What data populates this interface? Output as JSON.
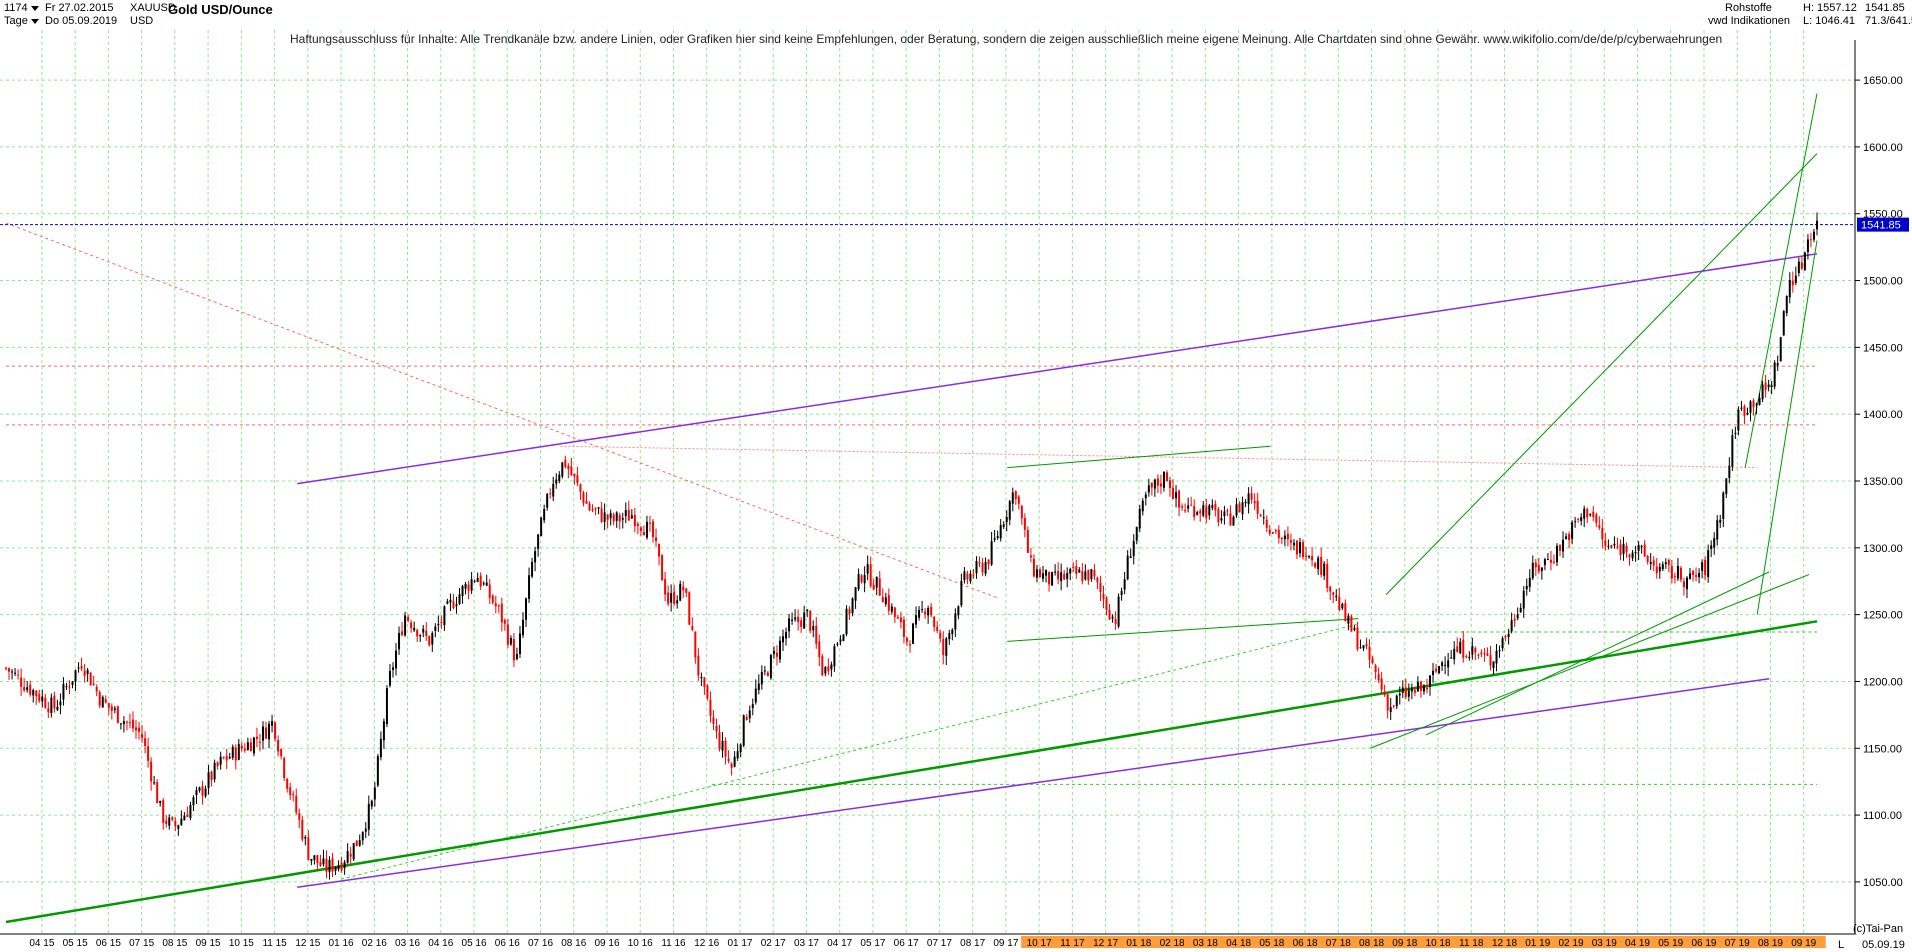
{
  "header": {
    "bar_count": "1174",
    "bar_count_dropdown": "chevron-down",
    "start_date": "Fr 27.02.2015",
    "period": "Tage",
    "end_date": "Do 05.09.2019",
    "symbol": "XAUUSD",
    "currency": "USD",
    "title": "Gold USD/Ounce",
    "category": "Rohstoffe",
    "source": "vwd Indikationen",
    "high_label": "H: 1557.12",
    "low_label": "L: 1046.41",
    "last_price": "1541.85",
    "ratio": "71.3/641.5"
  },
  "disclaimer": "Haftungsausschluss für Inhalte: Alle Trendkanäle bzw. andere Linien, oder Grafiken hier sind keine Empfehlungen, oder Beratung, sondern die zeigen ausschließlich meine eigene Meinung. Alle Chartdaten sind ohne Gewähr.  www.wikifolio.com/de/de/p/cyberwaehrungen",
  "footer": {
    "copyright": "(c)Tai-Pan",
    "scale_letter": "L",
    "last_date": "05.09.19"
  },
  "colors": {
    "up": "#000000",
    "down": "#ff0000",
    "grid": "#8ee88e",
    "purple": "#8a2be2",
    "green": "#009900",
    "last_price_bg": "#0000cc",
    "future_axis_bg": "#ff9d3b"
  },
  "chart_data": {
    "type": "candlestick",
    "title": "Gold USD/Ounce",
    "y_range": [
      1020,
      1680
    ],
    "y_ticks": [
      1050,
      1100,
      1150,
      1200,
      1250,
      1300,
      1350,
      1400,
      1450,
      1500,
      1550,
      1600,
      1650
    ],
    "y_tick_labels": [
      "1050.00",
      "1100.00",
      "1150.00",
      "1200.00",
      "1250.00",
      "1300.00",
      "1350.00",
      "1400.00",
      "1450.00",
      "1500.00",
      "1550.00",
      "1600.00",
      "1650.00"
    ],
    "last_price": 1541.85,
    "high": 1557.12,
    "low": 1046.41,
    "x_labels": [
      "04 15",
      "05 15",
      "06 15",
      "07 15",
      "08 15",
      "09 15",
      "10 15",
      "11 15",
      "12 15",
      "01 16",
      "02 16",
      "03 16",
      "04 16",
      "05 16",
      "06 16",
      "07 16",
      "08 16",
      "09 16",
      "10 16",
      "11 16",
      "12 16",
      "01 17",
      "02 17",
      "03 17",
      "04 17",
      "05 17",
      "06 17",
      "07 17",
      "08 17",
      "09 17",
      "10 17",
      "11 17",
      "12 17",
      "01 18",
      "02 18",
      "03 18",
      "04 18",
      "05 18",
      "06 18",
      "07 18",
      "08 18",
      "09 18",
      "10 18",
      "11 18",
      "12 18",
      "01 19",
      "02 19",
      "03 19",
      "04 19",
      "05 19",
      "06 19",
      "07 19",
      "08 19",
      "09 19"
    ],
    "x_labels_future_start": 30,
    "price_path": [
      [
        2015.16,
        1210
      ],
      [
        2015.22,
        1195
      ],
      [
        2015.28,
        1180
      ],
      [
        2015.35,
        1215
      ],
      [
        2015.4,
        1185
      ],
      [
        2015.46,
        1170
      ],
      [
        2015.5,
        1160
      ],
      [
        2015.55,
        1100
      ],
      [
        2015.58,
        1090
      ],
      [
        2015.63,
        1110
      ],
      [
        2015.7,
        1140
      ],
      [
        2015.75,
        1150
      ],
      [
        2015.8,
        1160
      ],
      [
        2015.83,
        1170
      ],
      [
        2015.86,
        1130
      ],
      [
        2015.92,
        1070
      ],
      [
        2015.96,
        1060
      ],
      [
        2016.0,
        1065
      ],
      [
        2016.04,
        1080
      ],
      [
        2016.08,
        1110
      ],
      [
        2016.12,
        1200
      ],
      [
        2016.16,
        1250
      ],
      [
        2016.22,
        1230
      ],
      [
        2016.28,
        1260
      ],
      [
        2016.34,
        1280
      ],
      [
        2016.4,
        1250
      ],
      [
        2016.44,
        1215
      ],
      [
        2016.48,
        1290
      ],
      [
        2016.53,
        1350
      ],
      [
        2016.56,
        1365
      ],
      [
        2016.62,
        1330
      ],
      [
        2016.68,
        1320
      ],
      [
        2016.73,
        1325
      ],
      [
        2016.78,
        1310
      ],
      [
        2016.82,
        1260
      ],
      [
        2016.86,
        1270
      ],
      [
        2016.9,
        1200
      ],
      [
        2016.94,
        1160
      ],
      [
        2016.98,
        1135
      ],
      [
        2017.02,
        1180
      ],
      [
        2017.07,
        1210
      ],
      [
        2017.12,
        1240
      ],
      [
        2017.17,
        1250
      ],
      [
        2017.21,
        1205
      ],
      [
        2017.27,
        1250
      ],
      [
        2017.31,
        1285
      ],
      [
        2017.36,
        1265
      ],
      [
        2017.42,
        1230
      ],
      [
        2017.47,
        1260
      ],
      [
        2017.51,
        1220
      ],
      [
        2017.56,
        1275
      ],
      [
        2017.62,
        1290
      ],
      [
        2017.69,
        1345
      ],
      [
        2017.73,
        1285
      ],
      [
        2017.78,
        1275
      ],
      [
        2017.84,
        1280
      ],
      [
        2017.88,
        1280
      ],
      [
        2017.94,
        1245
      ],
      [
        2017.98,
        1300
      ],
      [
        2018.02,
        1340
      ],
      [
        2018.07,
        1355
      ],
      [
        2018.1,
        1330
      ],
      [
        2018.16,
        1330
      ],
      [
        2018.22,
        1320
      ],
      [
        2018.28,
        1340
      ],
      [
        2018.32,
        1320
      ],
      [
        2018.38,
        1300
      ],
      [
        2018.42,
        1300
      ],
      [
        2018.46,
        1285
      ],
      [
        2018.52,
        1245
      ],
      [
        2018.58,
        1215
      ],
      [
        2018.63,
        1180
      ],
      [
        2018.66,
        1190
      ],
      [
        2018.72,
        1195
      ],
      [
        2018.77,
        1220
      ],
      [
        2018.82,
        1225
      ],
      [
        2018.88,
        1215
      ],
      [
        2018.93,
        1240
      ],
      [
        2018.98,
        1280
      ],
      [
        2019.04,
        1295
      ],
      [
        2019.1,
        1320
      ],
      [
        2019.13,
        1330
      ],
      [
        2019.17,
        1300
      ],
      [
        2019.24,
        1300
      ],
      [
        2019.3,
        1285
      ],
      [
        2019.35,
        1280
      ],
      [
        2019.38,
        1275
      ],
      [
        2019.42,
        1285
      ],
      [
        2019.46,
        1330
      ],
      [
        2019.5,
        1400
      ],
      [
        2019.54,
        1410
      ],
      [
        2019.58,
        1420
      ],
      [
        2019.6,
        1440
      ],
      [
        2019.63,
        1500
      ],
      [
        2019.66,
        1510
      ],
      [
        2019.68,
        1535
      ],
      [
        2019.7,
        1542
      ]
    ]
  }
}
